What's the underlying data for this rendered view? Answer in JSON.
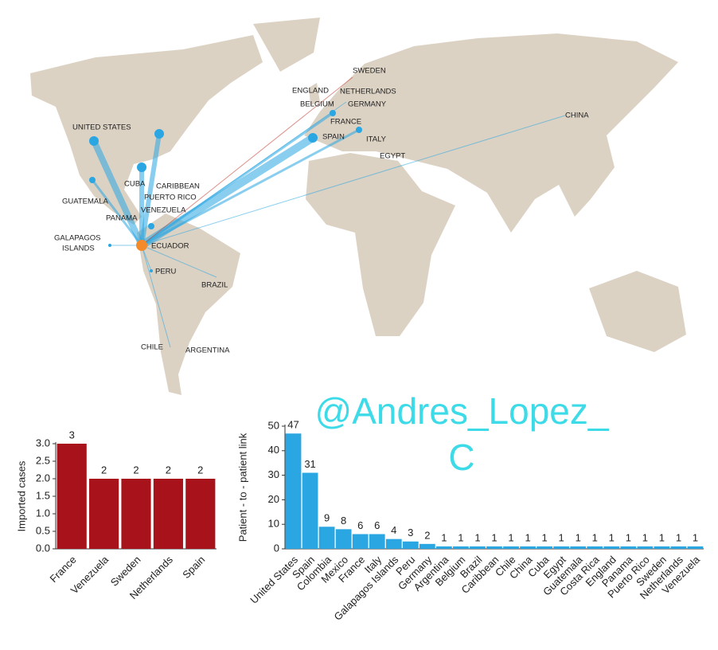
{
  "map": {
    "labels": [
      "SWEDEN",
      "ENGLAND",
      "NETHERLANDS",
      "BELGIUM",
      "GERMANY",
      "FRANCE",
      "SPAIN",
      "ITALY",
      "EGYPT",
      "CHINA",
      "UNITED STATES",
      "CUBA",
      "CARIBBEAN",
      "PUERTO RICO",
      "GUATEMALA",
      "PANAMA",
      "VENEZUELA",
      "GALAPAGOS",
      "ISLANDS",
      "ECUADOR",
      "PERU",
      "BRAZIL",
      "CHILE",
      "ARGENTINA"
    ]
  },
  "watermark": [
    "@Andres_Lopez_",
    "C"
  ],
  "chart_data": [
    {
      "type": "bar",
      "y_label": "Imported cases",
      "color": "#a8121a",
      "categories": [
        "France",
        "Venezuela",
        "Sweden",
        "Netherlands",
        "Spain"
      ],
      "values": [
        3,
        2,
        2,
        2,
        2
      ],
      "ylim": [
        0,
        3
      ],
      "yticks": [
        {
          "value": 0,
          "label": "0.0"
        },
        {
          "value": 0.5,
          "label": "0.5"
        },
        {
          "value": 1,
          "label": "1.0"
        },
        {
          "value": 1.5,
          "label": "1.5"
        },
        {
          "value": 2,
          "label": "2.0"
        },
        {
          "value": 2.5,
          "label": "2.5"
        },
        {
          "value": 3,
          "label": "3.0"
        }
      ]
    },
    {
      "type": "bar",
      "y_label": "Patient - to - patient link",
      "color": "#2aa6e2",
      "categories": [
        "United States",
        "Spain",
        "Colombia",
        "Mexico",
        "France",
        "Italy",
        "Galapagos Islands",
        "Peru",
        "Germany",
        "Argentina",
        "Belgium",
        "Brazil",
        "Caribbean",
        "Chile",
        "China",
        "Cuba",
        "Egypt",
        "Guatemala",
        "Costa Rica",
        "England",
        "Panama",
        "Puerto Rico",
        "Sweden",
        "Netherlands",
        "Venezuela"
      ],
      "values": [
        47,
        31,
        9,
        8,
        6,
        6,
        4,
        3,
        2,
        1,
        1,
        1,
        1,
        1,
        1,
        1,
        1,
        1,
        1,
        1,
        1,
        1,
        1,
        1,
        1
      ],
      "ylim": [
        0,
        50
      ],
      "yticks": [
        0,
        10,
        20,
        30,
        40,
        50
      ]
    }
  ]
}
